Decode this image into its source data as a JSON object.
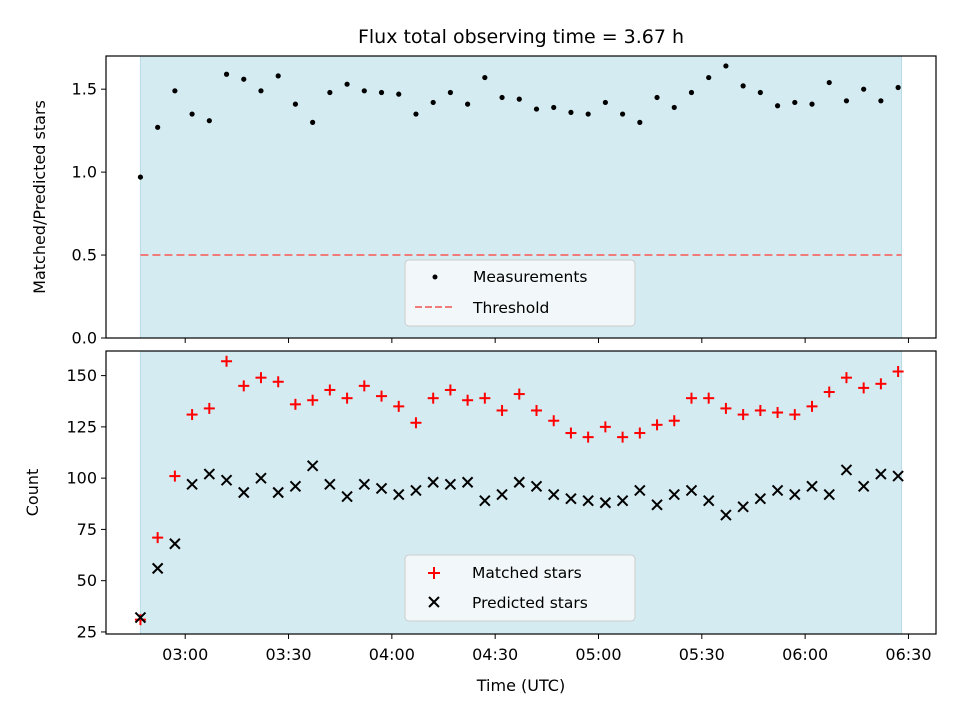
{
  "chart_data": {
    "type": "scatter",
    "title": "Flux total observing time = 3.67 h",
    "xlabel": "Time (UTC)",
    "x_tick_labels": [
      "03:00",
      "03:30",
      "04:00",
      "04:30",
      "05:00",
      "05:30",
      "06:00",
      "06:30"
    ],
    "x_tick_values": [
      "03:00",
      "03:30",
      "04:00",
      "04:30",
      "05:00",
      "05:30",
      "06:00",
      "06:30"
    ],
    "xlim": [
      "02:37",
      "06:38"
    ],
    "shaded_span": [
      "02:47",
      "06:28"
    ],
    "shade_color": "#d4ebf1",
    "x_times": [
      "02:47",
      "02:52",
      "02:57",
      "03:02",
      "03:07",
      "03:12",
      "03:17",
      "03:22",
      "03:27",
      "03:32",
      "03:37",
      "03:42",
      "03:47",
      "03:52",
      "03:57",
      "04:02",
      "04:07",
      "04:12",
      "04:17",
      "04:22",
      "04:27",
      "04:32",
      "04:37",
      "04:42",
      "04:47",
      "04:52",
      "04:57",
      "05:02",
      "05:07",
      "05:12",
      "05:17",
      "05:22",
      "05:27",
      "05:32",
      "05:37",
      "05:42",
      "05:47",
      "05:52",
      "05:57",
      "06:02",
      "06:07",
      "06:12",
      "06:17",
      "06:22",
      "06:27"
    ],
    "panels": [
      {
        "name": "ratio",
        "ylabel": "Matched/Predicted stars",
        "ylim": [
          0,
          1.7
        ],
        "y_ticks": [
          0.0,
          0.5,
          1.0,
          1.5
        ],
        "y_tick_labels": [
          "0.0",
          "0.5",
          "1.0",
          "1.5"
        ],
        "legend_position": "lower center",
        "series": [
          {
            "name": "Measurements",
            "marker": "dot",
            "color": "#000000",
            "values": [
              0.97,
              1.27,
              1.49,
              1.35,
              1.31,
              1.59,
              1.56,
              1.49,
              1.58,
              1.41,
              1.3,
              1.48,
              1.53,
              1.49,
              1.48,
              1.47,
              1.35,
              1.42,
              1.48,
              1.41,
              1.57,
              1.45,
              1.44,
              1.38,
              1.39,
              1.36,
              1.35,
              1.42,
              1.35,
              1.3,
              1.45,
              1.39,
              1.48,
              1.57,
              1.64,
              1.52,
              1.48,
              1.4,
              1.42,
              1.41,
              1.54,
              1.43,
              1.5,
              1.43,
              1.51
            ]
          }
        ],
        "threshold": {
          "name": "Threshold",
          "value": 0.5,
          "color": "#f07b7b"
        }
      },
      {
        "name": "counts",
        "ylabel": "Count",
        "ylim": [
          24,
          162
        ],
        "y_ticks": [
          25,
          50,
          75,
          100,
          125,
          150
        ],
        "y_tick_labels": [
          "25",
          "50",
          "75",
          "100",
          "125",
          "150"
        ],
        "legend_position": "lower center",
        "series": [
          {
            "name": "Matched stars",
            "marker": "plus",
            "color": "#ff0000",
            "values": [
              31,
              71,
              101,
              131,
              134,
              157,
              145,
              149,
              147,
              136,
              138,
              143,
              139,
              145,
              140,
              135,
              127,
              139,
              143,
              138,
              139,
              133,
              141,
              133,
              128,
              122,
              120,
              125,
              120,
              122,
              126,
              128,
              139,
              139,
              134,
              131,
              133,
              132,
              131,
              135,
              142,
              149,
              144,
              146,
              152
            ]
          },
          {
            "name": "Predicted stars",
            "marker": "x",
            "color": "#000000",
            "values": [
              32,
              56,
              68,
              97,
              102,
              99,
              93,
              100,
              93,
              96,
              106,
              97,
              91,
              97,
              95,
              92,
              94,
              98,
              97,
              98,
              89,
              92,
              98,
              96,
              92,
              90,
              89,
              88,
              89,
              94,
              87,
              92,
              94,
              89,
              82,
              86,
              90,
              94,
              92,
              96,
              92,
              104,
              96,
              102,
              101
            ]
          }
        ]
      }
    ]
  }
}
